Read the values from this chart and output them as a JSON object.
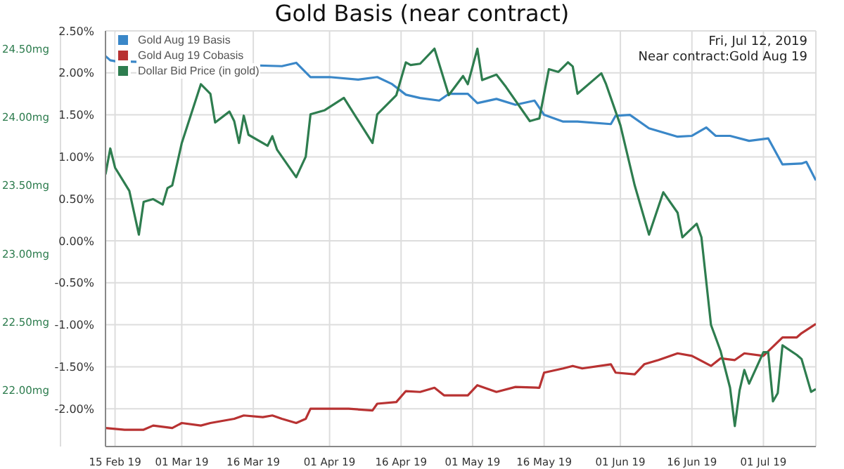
{
  "chart_data": {
    "type": "line",
    "title": "Gold Basis (near contract)",
    "annotations": [
      "Fri, Jul 12, 2019",
      "Near contract:Gold Aug 19"
    ],
    "legend": "top left",
    "grid": true,
    "xlim": [
      "2019-02-13",
      "2019-07-12"
    ],
    "xticks": [
      {
        "value": "2019-02-15",
        "label": "15 Feb 19"
      },
      {
        "value": "2019-03-01",
        "label": "01 Mar 19"
      },
      {
        "value": "2019-03-16",
        "label": "16 Mar 19"
      },
      {
        "value": "2019-04-01",
        "label": "01 Apr 19"
      },
      {
        "value": "2019-04-16",
        "label": "16 Apr 19"
      },
      {
        "value": "2019-05-01",
        "label": "01 May 19"
      },
      {
        "value": "2019-05-16",
        "label": "16 May 19"
      },
      {
        "value": "2019-06-01",
        "label": "01 Jun 19"
      },
      {
        "value": "2019-06-16",
        "label": "16 Jun 19"
      },
      {
        "value": "2019-07-01",
        "label": "01 Jul 19"
      }
    ],
    "ylim": [
      -2.45,
      2.5
    ],
    "yticks": [
      {
        "value": 2.5,
        "label": "2.50%"
      },
      {
        "value": 2,
        "label": "2.00%"
      },
      {
        "value": 1.5,
        "label": "1.50%"
      },
      {
        "value": 1,
        "label": "1.00%"
      },
      {
        "value": 0.5,
        "label": "0.50%"
      },
      {
        "value": 0,
        "label": "0.00%"
      },
      {
        "value": -0.5,
        "label": "-0.50%"
      },
      {
        "value": -1,
        "label": "-1.00%"
      },
      {
        "value": -1.5,
        "label": "-1.50%"
      },
      {
        "value": -2,
        "label": "-2.00%"
      }
    ],
    "y2lim": [
      21.59,
      24.63
    ],
    "y2ticks": [
      {
        "value": 24.5,
        "label": "24.50mg"
      },
      {
        "value": 24,
        "label": "24.00mg"
      },
      {
        "value": 23.5,
        "label": "23.50mg"
      },
      {
        "value": 23,
        "label": "23.00mg"
      },
      {
        "value": 22.5,
        "label": "22.50mg"
      },
      {
        "value": 22,
        "label": "22.00mg"
      }
    ],
    "series": [
      {
        "name": "Gold Aug 19 Basis",
        "color": "#3a87c8",
        "x": [
          "2019-02-13",
          "2019-02-14",
          "2019-02-15",
          "2019-03-22",
          "2019-03-25",
          "2019-03-28",
          "2019-04-01",
          "2019-04-07",
          "2019-04-11",
          "2019-04-14",
          "2019-04-17",
          "2019-04-20",
          "2019-04-24",
          "2019-04-26",
          "2019-04-30",
          "2019-05-02",
          "2019-05-06",
          "2019-05-10",
          "2019-05-14",
          "2019-05-16",
          "2019-05-20",
          "2019-05-23",
          "2019-05-30",
          "2019-05-31",
          "2019-06-03",
          "2019-06-07",
          "2019-06-10",
          "2019-06-13",
          "2019-06-16",
          "2019-06-19",
          "2019-06-21",
          "2019-06-24",
          "2019-06-28",
          "2019-07-02",
          "2019-07-05",
          "2019-07-09",
          "2019-07-10",
          "2019-07-12"
        ],
        "values": [
          2.2,
          2.15,
          2.14,
          2.08,
          2.12,
          1.95,
          1.95,
          1.92,
          1.95,
          1.87,
          1.74,
          1.7,
          1.67,
          1.75,
          1.75,
          1.64,
          1.69,
          1.62,
          1.67,
          1.5,
          1.42,
          1.42,
          1.39,
          1.49,
          1.5,
          1.34,
          1.29,
          1.24,
          1.25,
          1.35,
          1.25,
          1.25,
          1.19,
          1.22,
          0.91,
          0.92,
          0.94,
          0.72
        ]
      },
      {
        "name": "Gold Aug 19 Cobasis",
        "color": "#b83232",
        "x": [
          "2019-02-13",
          "2019-02-17",
          "2019-02-21",
          "2019-02-23",
          "2019-02-27",
          "2019-03-01",
          "2019-03-05",
          "2019-03-07",
          "2019-03-12",
          "2019-03-14",
          "2019-03-18",
          "2019-03-20",
          "2019-03-22",
          "2019-03-25",
          "2019-03-27",
          "2019-03-28",
          "2019-04-01",
          "2019-04-05",
          "2019-04-10",
          "2019-04-11",
          "2019-04-15",
          "2019-04-17",
          "2019-04-20",
          "2019-04-23",
          "2019-04-25",
          "2019-04-30",
          "2019-05-02",
          "2019-05-06",
          "2019-05-10",
          "2019-05-15",
          "2019-05-16",
          "2019-05-20",
          "2019-05-22",
          "2019-05-24",
          "2019-05-30",
          "2019-05-31",
          "2019-06-04",
          "2019-06-06",
          "2019-06-09",
          "2019-06-13",
          "2019-06-16",
          "2019-06-20",
          "2019-06-22",
          "2019-06-25",
          "2019-06-27",
          "2019-07-01",
          "2019-07-05",
          "2019-07-08",
          "2019-07-09",
          "2019-07-12"
        ],
        "values": [
          -2.23,
          -2.25,
          -2.25,
          -2.2,
          -2.23,
          -2.17,
          -2.2,
          -2.17,
          -2.12,
          -2.08,
          -2.1,
          -2.08,
          -2.12,
          -2.17,
          -2.12,
          -2.0,
          -2.0,
          -2.0,
          -2.02,
          -1.94,
          -1.92,
          -1.79,
          -1.8,
          -1.75,
          -1.84,
          -1.84,
          -1.72,
          -1.8,
          -1.74,
          -1.75,
          -1.57,
          -1.52,
          -1.49,
          -1.52,
          -1.47,
          -1.57,
          -1.59,
          -1.47,
          -1.42,
          -1.34,
          -1.37,
          -1.49,
          -1.4,
          -1.42,
          -1.34,
          -1.37,
          -1.15,
          -1.15,
          -1.1,
          -0.99
        ]
      },
      {
        "name": "Dollar Bid Price (in gold)",
        "color": "#2e7d4f",
        "axis": "y2",
        "x": [
          "2019-02-13",
          "2019-02-14",
          "2019-02-15",
          "2019-02-18",
          "2019-02-20",
          "2019-02-21",
          "2019-02-23",
          "2019-02-25",
          "2019-02-26",
          "2019-02-27",
          "2019-03-01",
          "2019-03-05",
          "2019-03-07",
          "2019-03-08",
          "2019-03-11",
          "2019-03-12",
          "2019-03-13",
          "2019-03-14",
          "2019-03-15",
          "2019-03-19",
          "2019-03-20",
          "2019-03-21",
          "2019-03-25",
          "2019-03-27",
          "2019-03-28",
          "2019-03-31",
          "2019-04-04",
          "2019-04-10",
          "2019-04-11",
          "2019-04-15",
          "2019-04-17",
          "2019-04-18",
          "2019-04-20",
          "2019-04-23",
          "2019-04-26",
          "2019-04-29",
          "2019-04-30",
          "2019-05-02",
          "2019-05-03",
          "2019-05-06",
          "2019-05-08",
          "2019-05-13",
          "2019-05-15",
          "2019-05-17",
          "2019-05-19",
          "2019-05-21",
          "2019-05-22",
          "2019-05-23",
          "2019-05-28",
          "2019-05-29",
          "2019-06-01",
          "2019-06-04",
          "2019-06-07",
          "2019-06-10",
          "2019-06-13",
          "2019-06-14",
          "2019-06-17",
          "2019-06-18",
          "2019-06-20",
          "2019-06-22",
          "2019-06-24",
          "2019-06-25",
          "2019-06-26",
          "2019-06-27",
          "2019-06-28",
          "2019-07-01",
          "2019-07-02",
          "2019-07-03",
          "2019-07-04",
          "2019-07-05",
          "2019-07-08",
          "2019-07-09",
          "2019-07-11",
          "2019-07-12"
        ],
        "values": [
          23.58,
          23.77,
          23.63,
          23.46,
          23.14,
          23.38,
          23.4,
          23.36,
          23.48,
          23.5,
          23.81,
          24.24,
          24.17,
          23.96,
          24.04,
          23.97,
          23.81,
          24.01,
          23.87,
          23.79,
          23.86,
          23.76,
          23.56,
          23.71,
          24.02,
          24.05,
          24.14,
          23.81,
          24.02,
          24.16,
          24.4,
          24.38,
          24.39,
          24.5,
          24.16,
          24.3,
          24.24,
          24.5,
          24.27,
          24.31,
          24.22,
          23.97,
          23.99,
          24.35,
          24.33,
          24.4,
          24.37,
          24.17,
          24.32,
          24.24,
          23.94,
          23.5,
          23.14,
          23.45,
          23.3,
          23.12,
          23.22,
          23.12,
          22.48,
          22.29,
          22.02,
          21.74,
          22.0,
          22.15,
          22.05,
          22.28,
          22.28,
          21.92,
          21.98,
          22.33,
          22.26,
          22.23,
          21.99,
          22.01
        ]
      }
    ]
  }
}
